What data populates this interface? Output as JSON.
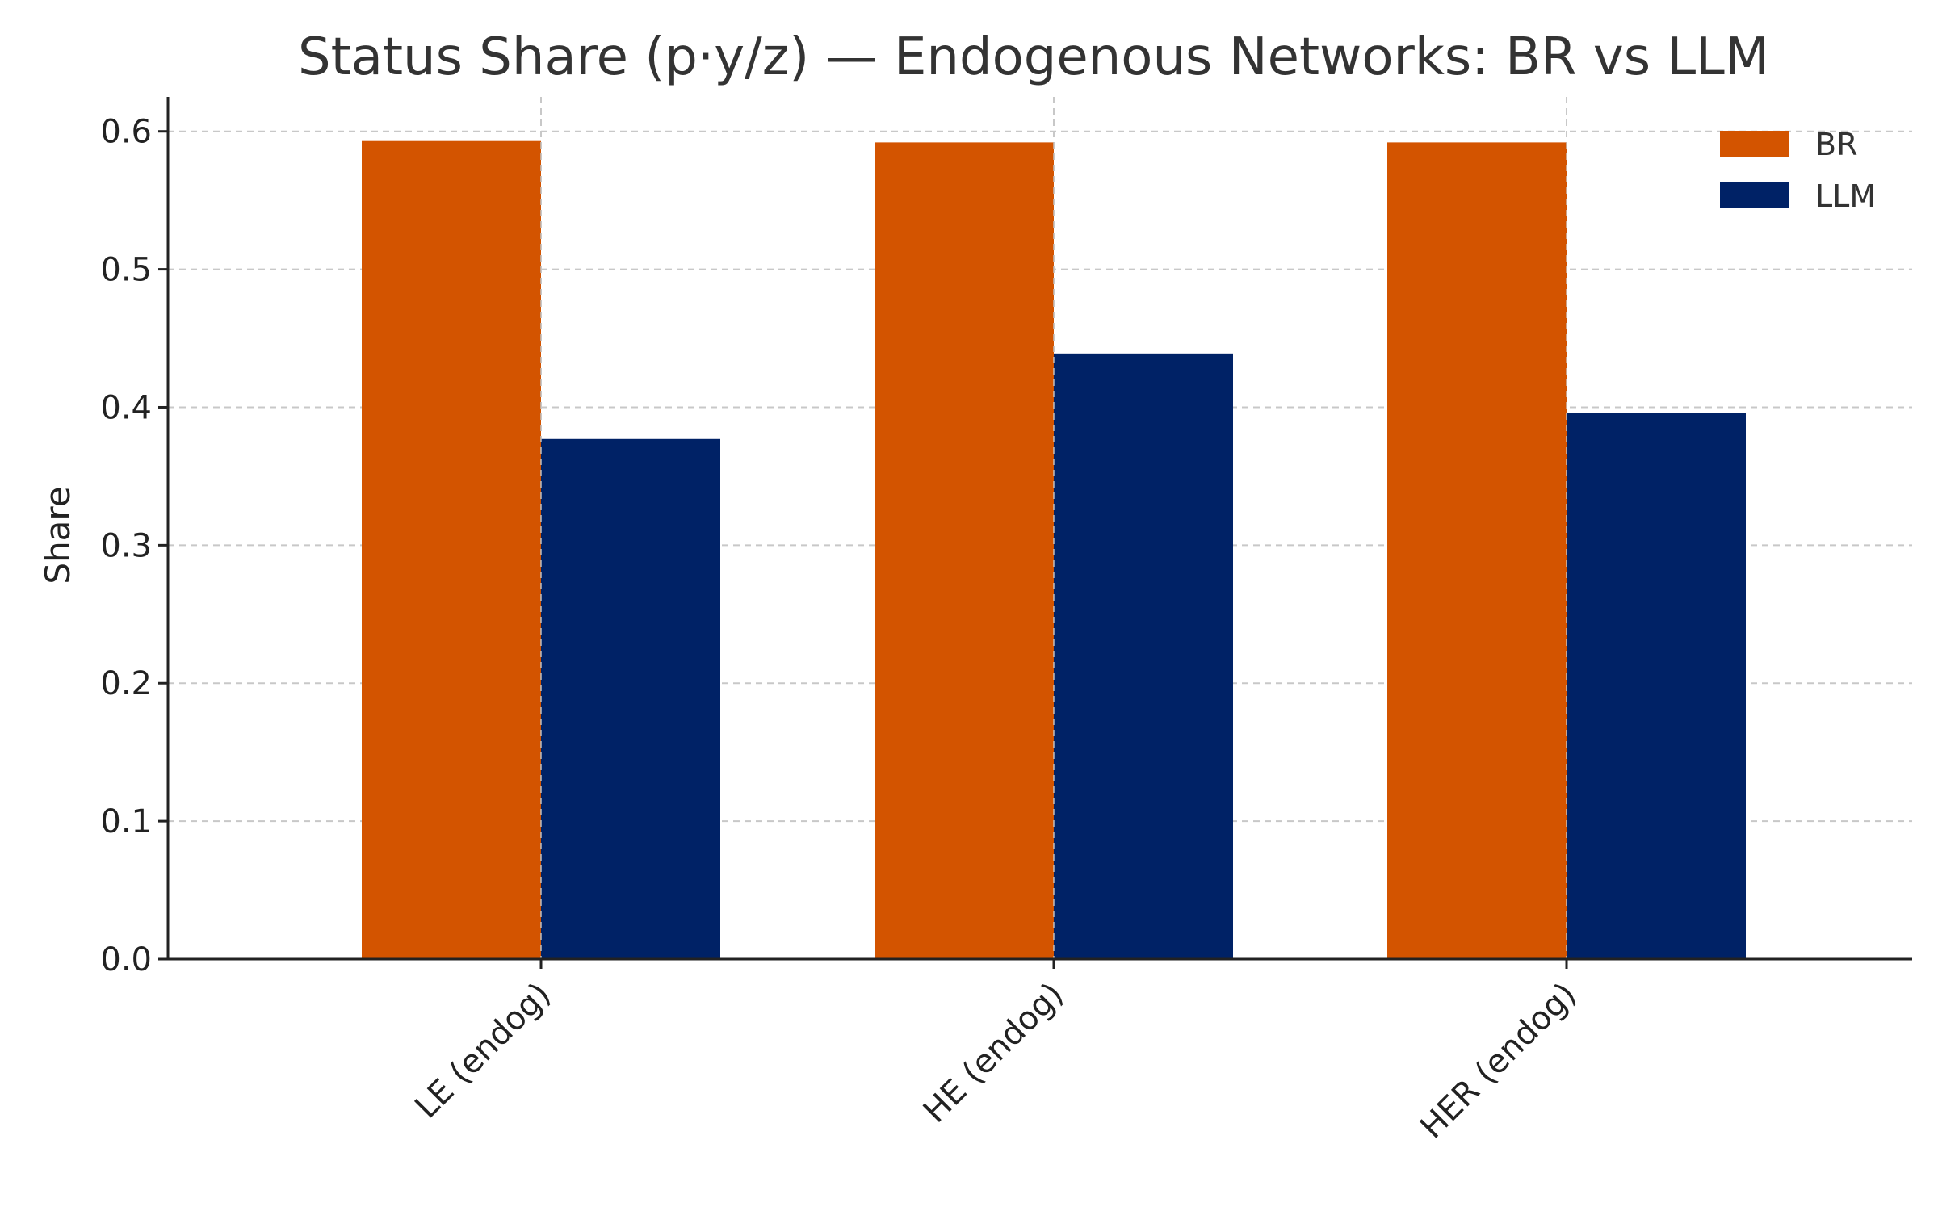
{
  "chart_data": {
    "type": "bar",
    "title": "Status Share (p·y/z) — Endogenous Networks: BR vs LLM",
    "xlabel": "",
    "ylabel": "Share",
    "ylim": [
      0,
      0.625
    ],
    "yticks": [
      "0.0",
      "0.1",
      "0.2",
      "0.3",
      "0.4",
      "0.5",
      "0.6"
    ],
    "ytick_values": [
      0,
      0.1,
      0.2,
      0.3,
      0.4,
      0.5,
      0.6
    ],
    "categories": [
      "LE (endog)",
      "HE (endog)",
      "HER (endog)"
    ],
    "series": [
      {
        "name": "BR",
        "color": "#d35400",
        "values": [
          0.593,
          0.592,
          0.592
        ]
      },
      {
        "name": "LLM",
        "color": "#002266",
        "values": [
          0.377,
          0.439,
          0.396
        ]
      }
    ],
    "grid": true,
    "legend_position": "top-right"
  }
}
